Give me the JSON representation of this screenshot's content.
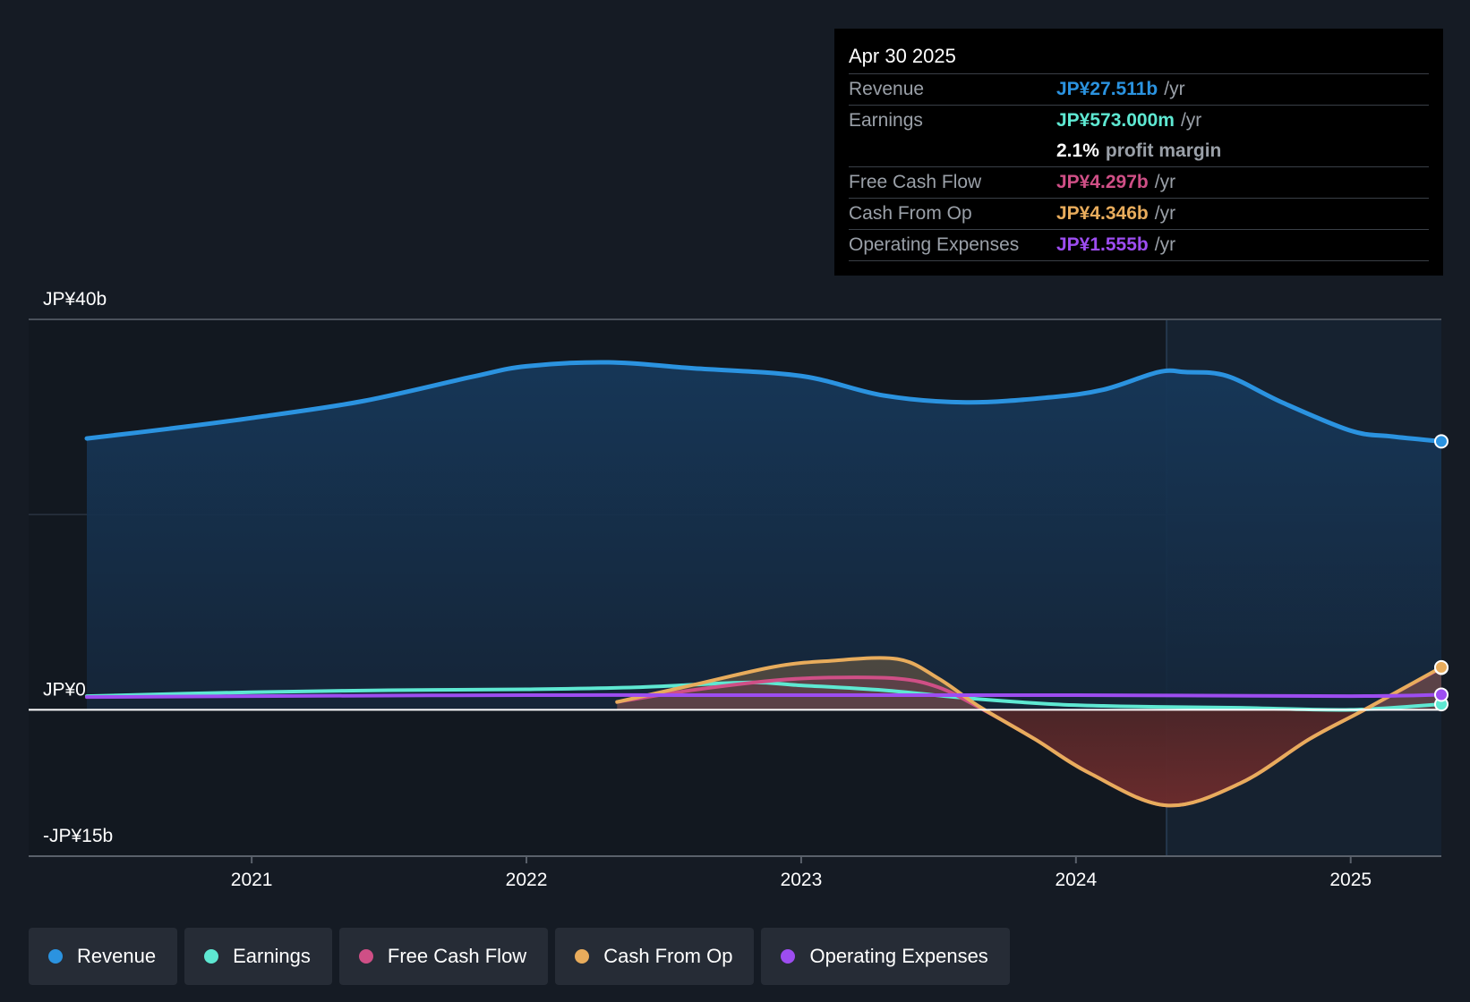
{
  "colors": {
    "revenue": "#2b93e0",
    "earnings": "#5ee8d2",
    "free_cash_flow": "#cf4f86",
    "cash_from_op": "#e8ac5c",
    "operating_expenses": "#9d4df0"
  },
  "tooltip": {
    "date": "Apr 30 2025",
    "rows": [
      {
        "label": "Revenue",
        "value": "JP¥27.511b",
        "unit": "/yr"
      },
      {
        "label": "Earnings",
        "value": "JP¥573.000m",
        "unit": "/yr"
      },
      {
        "label": "",
        "value": "2.1%",
        "unit": "profit margin"
      },
      {
        "label": "Free Cash Flow",
        "value": "JP¥4.297b",
        "unit": "/yr"
      },
      {
        "label": "Cash From Op",
        "value": "JP¥4.346b",
        "unit": "/yr"
      },
      {
        "label": "Operating Expenses",
        "value": "JP¥1.555b",
        "unit": "/yr"
      }
    ]
  },
  "legend": [
    {
      "label": "Revenue"
    },
    {
      "label": "Earnings"
    },
    {
      "label": "Free Cash Flow"
    },
    {
      "label": "Cash From Op"
    },
    {
      "label": "Operating Expenses"
    }
  ],
  "chart_data": {
    "type": "area",
    "title": "",
    "xlabel": "",
    "ylabel": "",
    "ylim": [
      -15,
      40
    ],
    "y_tick_labels": [
      {
        "value": 40,
        "label": "JP¥40b"
      },
      {
        "value": 0,
        "label": "JP¥0"
      },
      {
        "value": -15,
        "label": "-JP¥15b"
      }
    ],
    "x_tick_labels": [
      {
        "value": 2021.0,
        "label": "2021"
      },
      {
        "value": 2022.0,
        "label": "2022"
      },
      {
        "value": 2023.0,
        "label": "2023"
      },
      {
        "value": 2024.0,
        "label": "2024"
      },
      {
        "value": 2025.0,
        "label": "2025"
      }
    ],
    "xlim": [
      2020.4,
      2025.33
    ],
    "highlight_start": 2024.33,
    "series": [
      {
        "name": "Revenue",
        "key": "revenue",
        "x": [
          2020.4,
          2020.7,
          2021.0,
          2021.4,
          2021.8,
          2022.0,
          2022.3,
          2022.6,
          2023.0,
          2023.3,
          2023.6,
          2023.9,
          2024.1,
          2024.3,
          2024.4,
          2024.55,
          2024.75,
          2025.0,
          2025.15,
          2025.33
        ],
        "values": [
          27.8,
          28.8,
          29.9,
          31.6,
          34.1,
          35.2,
          35.6,
          35.0,
          34.2,
          32.2,
          31.5,
          32.0,
          32.8,
          34.6,
          34.6,
          34.2,
          31.5,
          28.6,
          28.0,
          27.5
        ]
      },
      {
        "name": "Earnings",
        "key": "earnings",
        "x": [
          2020.4,
          2021.0,
          2021.5,
          2022.0,
          2022.4,
          2022.8,
          2023.0,
          2023.3,
          2023.6,
          2023.9,
          2024.1,
          2024.3,
          2024.6,
          2025.0,
          2025.33
        ],
        "values": [
          1.4,
          1.8,
          2.0,
          2.1,
          2.3,
          2.8,
          2.5,
          2.0,
          1.2,
          0.6,
          0.4,
          0.3,
          0.2,
          0.0,
          0.57
        ]
      },
      {
        "name": "Free Cash Flow",
        "key": "free_cash_flow",
        "x": [
          2022.33,
          2022.6,
          2022.9,
          2023.1,
          2023.35,
          2023.5,
          2023.65,
          2023.85,
          2024.05,
          2024.33,
          2024.6,
          2024.85,
          2025.05,
          2025.33
        ],
        "values": [
          0.8,
          2.0,
          3.0,
          3.3,
          3.2,
          2.3,
          0.2,
          -3.0,
          -6.5,
          -9.8,
          -7.5,
          -3.0,
          0.0,
          4.3
        ]
      },
      {
        "name": "Cash From Op",
        "key": "cash_from_op",
        "x": [
          2022.33,
          2022.6,
          2022.9,
          2023.1,
          2023.35,
          2023.5,
          2023.65,
          2023.85,
          2024.05,
          2024.33,
          2024.6,
          2024.85,
          2025.05,
          2025.33
        ],
        "values": [
          0.8,
          2.5,
          4.4,
          5.0,
          5.2,
          3.2,
          0.3,
          -3.0,
          -6.5,
          -9.8,
          -7.5,
          -3.0,
          0.0,
          4.35
        ]
      },
      {
        "name": "Operating Expenses",
        "key": "operating_expenses",
        "x": [
          2020.4,
          2021.0,
          2022.0,
          2023.0,
          2024.0,
          2025.0,
          2025.33
        ],
        "values": [
          1.3,
          1.4,
          1.5,
          1.5,
          1.5,
          1.4,
          1.55
        ]
      }
    ]
  }
}
